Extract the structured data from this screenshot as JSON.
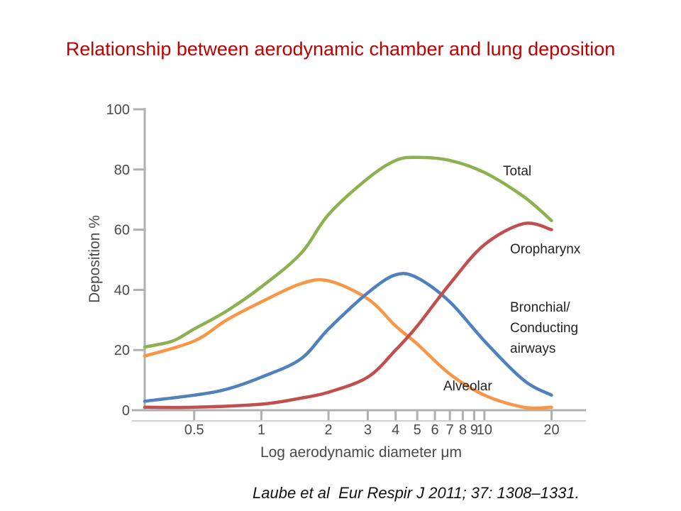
{
  "slide": {
    "title": "Relationship between aerodynamic chamber and lung deposition",
    "citation": "Laube et al  Eur Respir J 2011; 37: 1308–1331."
  },
  "chart_data": {
    "type": "line",
    "title": "",
    "xlabel": "Log aerodynamic diameter μm",
    "ylabel": "Deposition %",
    "x_scale": "log",
    "xlim": [
      0.3,
      25
    ],
    "ylim": [
      0,
      100
    ],
    "x_ticks": [
      0.5,
      1,
      2,
      3,
      4,
      5,
      6,
      7,
      8,
      9,
      10,
      20
    ],
    "x_tick_labels": [
      "0.5",
      "1",
      "2",
      "3",
      "4",
      "5",
      "6",
      "7",
      "8",
      "9",
      "10",
      "20"
    ],
    "y_ticks": [
      0,
      20,
      40,
      60,
      80,
      100
    ],
    "y_tick_labels": [
      "0",
      "20",
      "40",
      "60",
      "80",
      "100"
    ],
    "series": [
      {
        "name": "Total",
        "color": "#8db050",
        "x": [
          0.3,
          0.4,
          0.5,
          0.7,
          1.0,
          1.5,
          2.0,
          3.0,
          4.0,
          5.0,
          7.0,
          10.0,
          15.0,
          20.0
        ],
        "y": [
          21,
          23,
          27,
          33,
          41,
          52,
          65,
          77,
          83,
          84,
          83,
          79,
          71,
          63
        ]
      },
      {
        "name": "Oropharynx",
        "color": "#c0504d",
        "x": [
          0.3,
          0.5,
          1.0,
          1.5,
          2.0,
          3.0,
          4.0,
          5.0,
          7.0,
          10.0,
          15.0,
          20.0
        ],
        "y": [
          1,
          1,
          2,
          4,
          6,
          11,
          20,
          28,
          42,
          55,
          62,
          60
        ]
      },
      {
        "name": "Bronchial/ Conducting airways",
        "color": "#4f81bd",
        "x": [
          0.3,
          0.5,
          0.7,
          1.0,
          1.5,
          2.0,
          3.0,
          4.0,
          5.0,
          7.0,
          10.0,
          15.0,
          20.0
        ],
        "y": [
          3,
          5,
          7,
          11,
          17,
          27,
          39,
          45,
          44,
          36,
          23,
          10,
          5
        ]
      },
      {
        "name": "Alveolar",
        "color": "#f79646",
        "x": [
          0.3,
          0.5,
          0.7,
          1.0,
          1.5,
          2.0,
          3.0,
          4.0,
          5.0,
          7.0,
          10.0,
          15.0,
          20.0
        ],
        "y": [
          18,
          23,
          30,
          36,
          42,
          43,
          37,
          28,
          22,
          12,
          5,
          1,
          1
        ]
      }
    ],
    "curve_labels": [
      {
        "series": 0,
        "lines": [
          "Total"
        ]
      },
      {
        "series": 1,
        "lines": [
          "Oropharynx"
        ]
      },
      {
        "series": 2,
        "lines": [
          "Bronchial/",
          "Conducting",
          "airways"
        ]
      },
      {
        "series": 3,
        "lines": [
          "Alveolar"
        ]
      }
    ],
    "legend": "none",
    "grid": false
  }
}
